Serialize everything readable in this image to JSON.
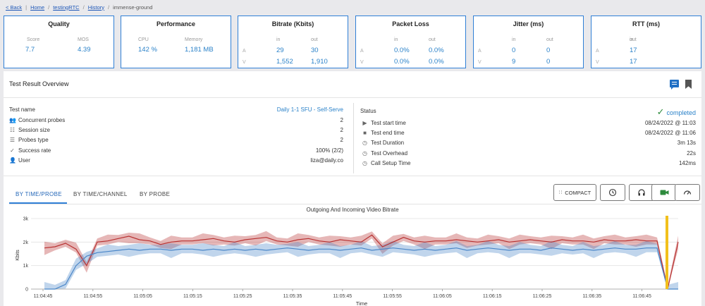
{
  "breadcrumb": {
    "back": "< Back",
    "home": "Home",
    "app": "testingRTC",
    "history": "History",
    "current": "immense-ground"
  },
  "cards": {
    "quality": {
      "title": "Quality",
      "score_label": "Score",
      "score": "7.7",
      "mos_label": "MOS",
      "mos": "4.39"
    },
    "performance": {
      "title": "Performance",
      "cpu_label": "CPU",
      "cpu": "142 %",
      "mem_label": "Memory",
      "mem": "1,181 MB"
    },
    "bitrate": {
      "title": "Bitrate (Kbits)",
      "in_label": "in",
      "out_label": "out",
      "a_label": "A",
      "v_label": "V",
      "a_in": "29",
      "a_out": "30",
      "v_in": "1,552",
      "v_out": "1,910"
    },
    "packet_loss": {
      "title": "Packet Loss",
      "in_label": "in",
      "out_label": "out",
      "a_label": "A",
      "v_label": "V",
      "a_in": "0.0%",
      "a_out": "0.0%",
      "v_in": "0.0%",
      "v_out": "0.0%"
    },
    "jitter": {
      "title": "Jitter (ms)",
      "in_label": "in",
      "out_label": "out",
      "a_label": "A",
      "v_label": "V",
      "a_in": "0",
      "a_out": "0",
      "v_in": "9",
      "v_out": "0"
    },
    "rtt": {
      "title": "RTT (ms)",
      "in_label": "in",
      "out_label": "out",
      "a_label": "A",
      "v_label": "V",
      "a_in": "",
      "a_out": "17",
      "v_in": "",
      "v_out": "17"
    }
  },
  "overview": {
    "title": "Test Result Overview",
    "test_name_label": "Test name",
    "test_name": "Daily 1-1 SFU - Self-Serve",
    "left_rows": [
      {
        "label": "Concurrent probes",
        "value": "2"
      },
      {
        "label": "Session size",
        "value": "2"
      },
      {
        "label": "Probes type",
        "value": "2"
      },
      {
        "label": "Success rate",
        "value": "100% (2/2)"
      },
      {
        "label": "User",
        "value": "liza@daily.co"
      }
    ],
    "status_label": "Status",
    "status": "completed",
    "right_rows": [
      {
        "label": "Test start time",
        "value": "08/24/2022 @ 11:03"
      },
      {
        "label": "Test end time",
        "value": "08/24/2022 @ 11:06"
      },
      {
        "label": "Test Duration",
        "value": "3m 13s"
      },
      {
        "label": "Test Overhead",
        "value": "22s"
      },
      {
        "label": "Call Setup Time",
        "value": "142ms"
      }
    ]
  },
  "tabs": [
    "BY TIME/PROBE",
    "BY TIME/CHANNEL",
    "BY PROBE"
  ],
  "toolbar": {
    "compact": "COMPACT"
  },
  "icons": [
    "comment-icon",
    "bookmark-icon",
    "check-icon",
    "clock-icon",
    "headphones-icon",
    "video-icon",
    "gauge-icon"
  ],
  "colors": {
    "accent": "#2f7fd6",
    "value": "#2b82c9",
    "status": "#2e8b3d",
    "incoming": "#4a86c8",
    "outgoing": "#b83232",
    "marker": "#f2c01c"
  },
  "chart_data": {
    "type": "line",
    "title": "Outgoing And Incoming Video Bitrate",
    "xlabel": "Time",
    "ylabel": "Kbits",
    "y_ticks": [
      "0",
      "1k",
      "2k",
      "3k"
    ],
    "ylim": [
      0,
      3000
    ],
    "x_ticks": [
      "11:04:45",
      "11:04:55",
      "11:05:05",
      "11:05:15",
      "11:05:25",
      "11:05:35",
      "11:05:45",
      "11:05:55",
      "11:06:05",
      "11:06:15",
      "11:06:25",
      "11:06:35",
      "11:06:45"
    ],
    "series": [
      {
        "color": "#b83232",
        "values": [
          1750,
          1800,
          1950,
          1700,
          1000,
          2000,
          2050,
          2150,
          2250,
          2100,
          2050,
          1900,
          2000,
          2050,
          2050,
          2100,
          2150,
          2050,
          2000,
          2100,
          2150,
          2200,
          2050,
          2000,
          2100,
          2150,
          2050,
          2000,
          2100,
          2050,
          2000,
          2300,
          1800,
          2000,
          2200,
          2050,
          2000,
          2050,
          2050,
          2100,
          2050,
          2000,
          2050,
          2100,
          2000,
          2050,
          2100,
          2050,
          2000,
          2100,
          2050,
          2050,
          2000,
          2100,
          2050,
          2050,
          2100,
          2050,
          2050,
          0,
          2000
        ]
      },
      {
        "color": "#4a86c8",
        "values": [
          0,
          0,
          200,
          1000,
          1400,
          1550,
          1600,
          1650,
          1700,
          1650,
          1700,
          1700,
          1650,
          1700,
          1700,
          1650,
          1700,
          1650,
          1700,
          1650,
          1700,
          1650,
          1700,
          1750,
          1700,
          1650,
          1700,
          1700,
          1650,
          1700,
          1750,
          1650,
          1700,
          1750,
          1700,
          1650,
          1700,
          1650,
          1700,
          1750,
          1650,
          1700,
          1750,
          1700,
          1650,
          1700,
          1700,
          1650,
          1750,
          1700,
          1650,
          1700,
          1650,
          1700,
          1750,
          1700,
          1700,
          1750,
          1750,
          0,
          0
        ]
      }
    ],
    "marker_label": ""
  }
}
